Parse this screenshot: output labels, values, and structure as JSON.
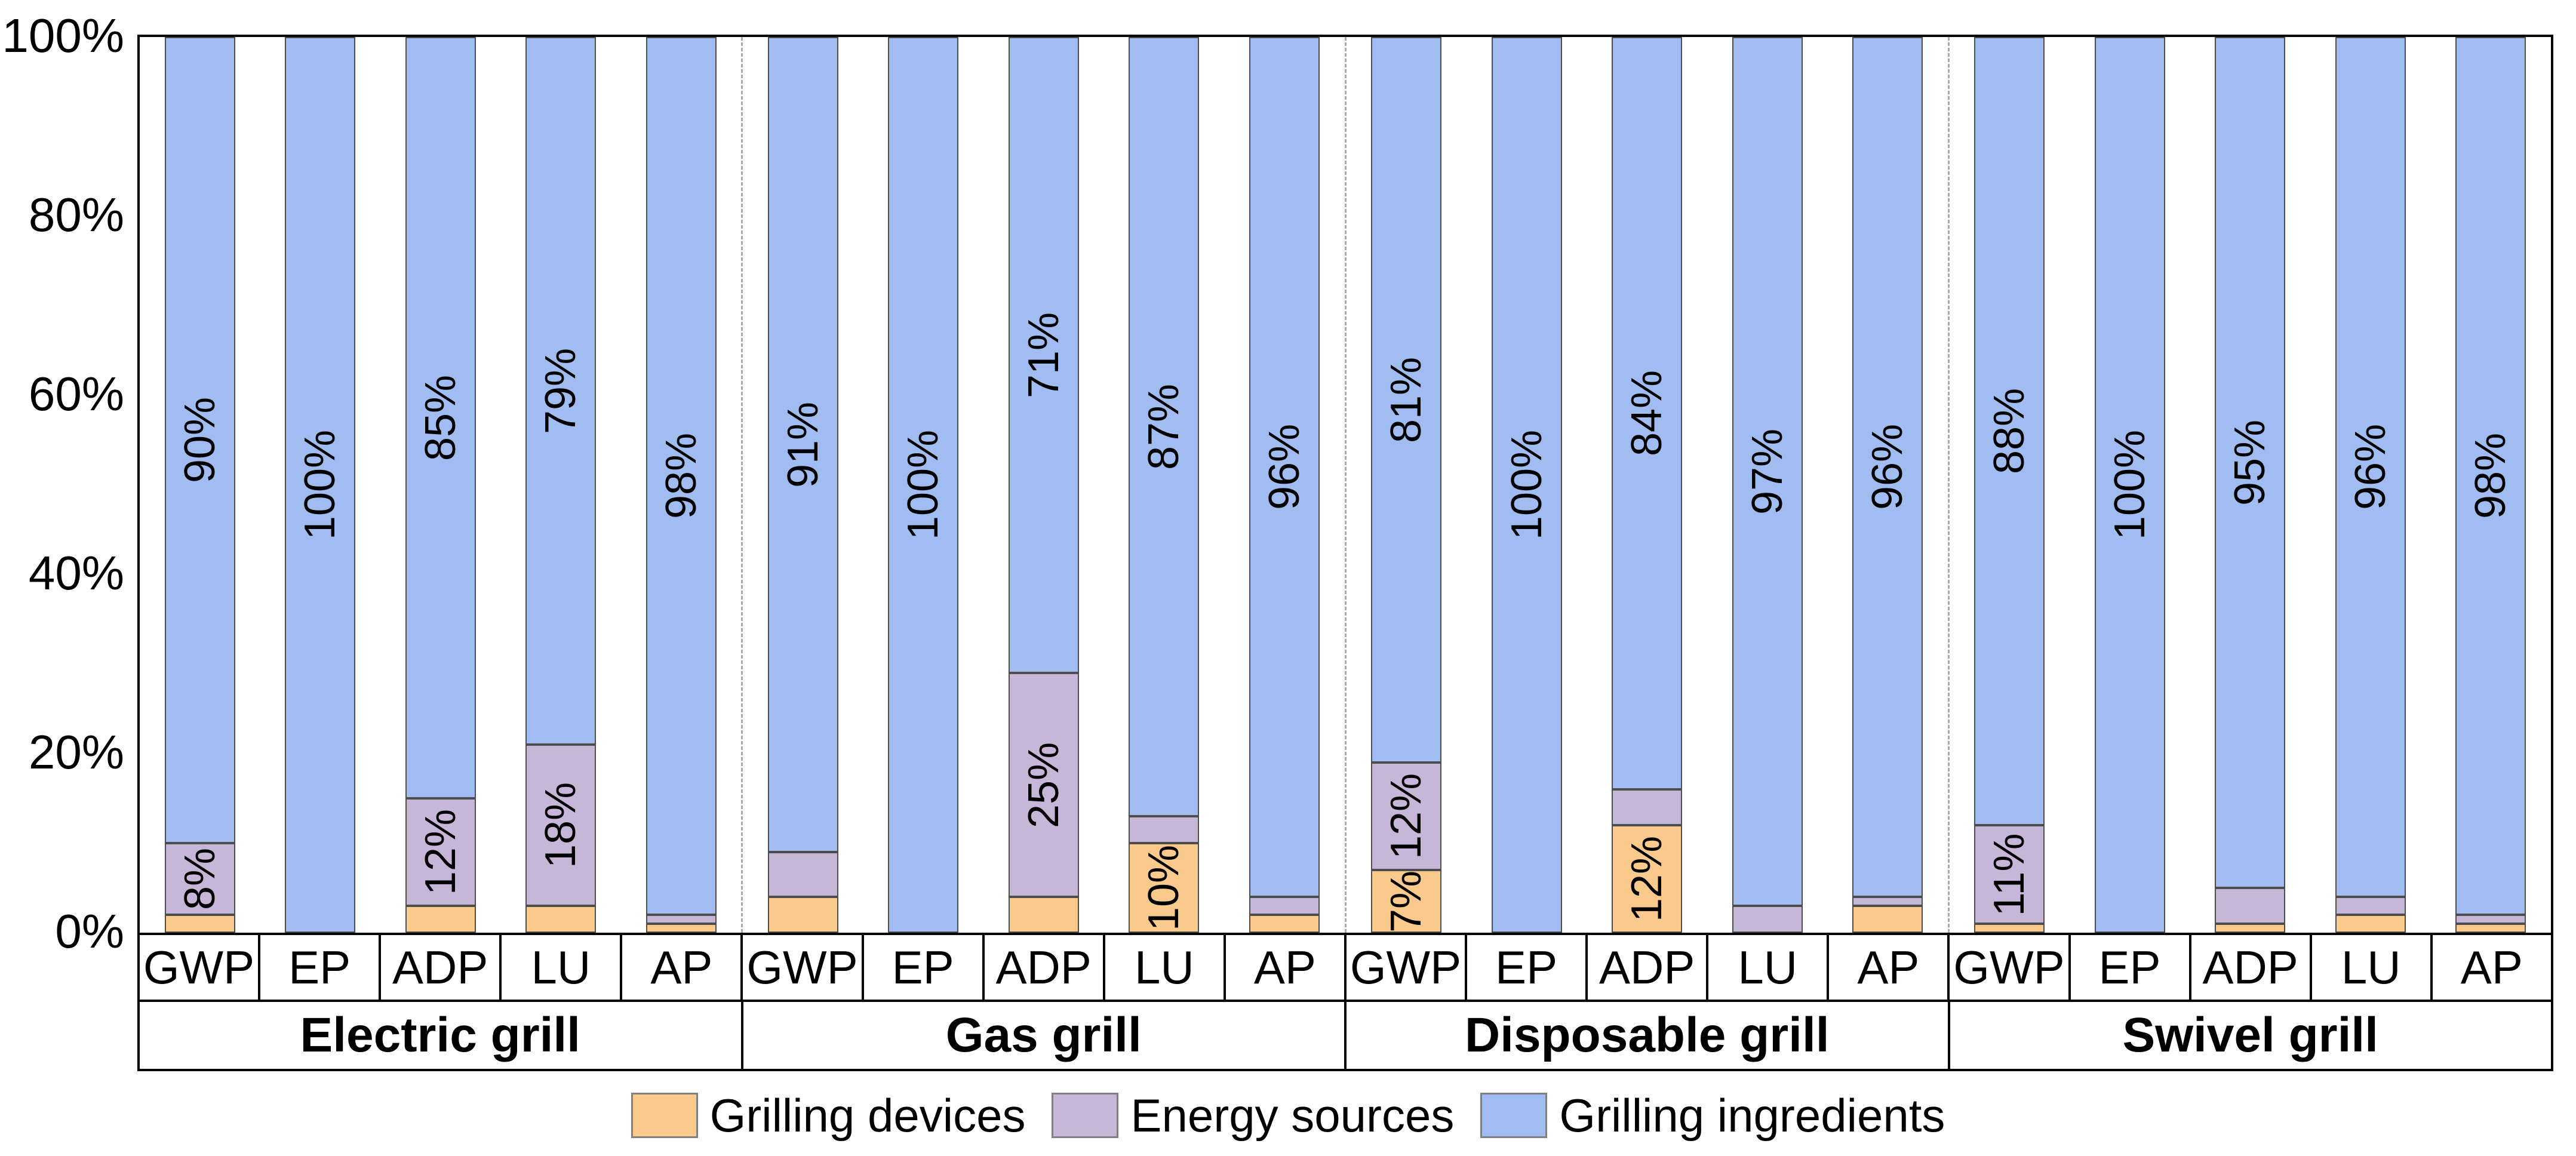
{
  "y_axis": {
    "ticks": [
      "100%",
      "80%",
      "60%",
      "40%",
      "20%",
      "0%"
    ]
  },
  "chart_data": {
    "type": "bar",
    "stacked": true,
    "unit": "%",
    "ylim": [
      0,
      100
    ],
    "grid": false,
    "legend_position": "bottom",
    "categories_per_group": [
      "GWP",
      "EP",
      "ADP",
      "LU",
      "AP"
    ],
    "series": [
      {
        "name": "Grilling devices",
        "color": "#FAC98C"
      },
      {
        "name": "Energy sources",
        "color": "#C6B6D7"
      },
      {
        "name": "Grilling ingredients",
        "color": "#A0BCF0"
      }
    ],
    "groups": [
      {
        "label": "Electric grill",
        "bars": [
          {
            "category": "GWP",
            "values": [
              2,
              8,
              90
            ],
            "labels": [
              null,
              "8%",
              "90%"
            ]
          },
          {
            "category": "EP",
            "values": [
              0,
              0,
              100
            ],
            "labels": [
              null,
              null,
              "100%"
            ]
          },
          {
            "category": "ADP",
            "values": [
              3,
              12,
              85
            ],
            "labels": [
              null,
              "12%",
              "85%"
            ]
          },
          {
            "category": "LU",
            "values": [
              3,
              18,
              79
            ],
            "labels": [
              null,
              "18%",
              "79%"
            ]
          },
          {
            "category": "AP",
            "values": [
              1,
              1,
              98
            ],
            "labels": [
              null,
              null,
              "98%"
            ]
          }
        ]
      },
      {
        "label": "Gas grill",
        "bars": [
          {
            "category": "GWP",
            "values": [
              4,
              5,
              91
            ],
            "labels": [
              null,
              null,
              "91%"
            ]
          },
          {
            "category": "EP",
            "values": [
              0,
              0,
              100
            ],
            "labels": [
              null,
              null,
              "100%"
            ]
          },
          {
            "category": "ADP",
            "values": [
              4,
              25,
              71
            ],
            "labels": [
              null,
              "25%",
              "71%"
            ]
          },
          {
            "category": "LU",
            "values": [
              10,
              3,
              87
            ],
            "labels": [
              "10%",
              null,
              "87%"
            ]
          },
          {
            "category": "AP",
            "values": [
              2,
              2,
              96
            ],
            "labels": [
              null,
              null,
              "96%"
            ]
          }
        ]
      },
      {
        "label": "Disposable grill",
        "bars": [
          {
            "category": "GWP",
            "values": [
              7,
              12,
              81
            ],
            "labels": [
              "7%",
              "12%",
              "81%"
            ]
          },
          {
            "category": "EP",
            "values": [
              0,
              0,
              100
            ],
            "labels": [
              null,
              null,
              "100%"
            ]
          },
          {
            "category": "ADP",
            "values": [
              12,
              4,
              84
            ],
            "labels": [
              "12%",
              null,
              "84%"
            ]
          },
          {
            "category": "LU",
            "values": [
              0,
              3,
              97
            ],
            "labels": [
              null,
              null,
              "97%"
            ]
          },
          {
            "category": "AP",
            "values": [
              3,
              1,
              96
            ],
            "labels": [
              null,
              null,
              "96%"
            ]
          }
        ]
      },
      {
        "label": "Swivel grill",
        "bars": [
          {
            "category": "GWP",
            "values": [
              1,
              11,
              88
            ],
            "labels": [
              null,
              "11%",
              "88%"
            ]
          },
          {
            "category": "EP",
            "values": [
              0,
              0,
              100
            ],
            "labels": [
              null,
              null,
              "100%"
            ]
          },
          {
            "category": "ADP",
            "values": [
              1,
              4,
              95
            ],
            "labels": [
              null,
              null,
              "95%"
            ]
          },
          {
            "category": "LU",
            "values": [
              2,
              2,
              96
            ],
            "labels": [
              null,
              null,
              "96%"
            ]
          },
          {
            "category": "AP",
            "values": [
              1,
              1,
              98
            ],
            "labels": [
              null,
              null,
              "98%"
            ]
          }
        ]
      }
    ]
  }
}
